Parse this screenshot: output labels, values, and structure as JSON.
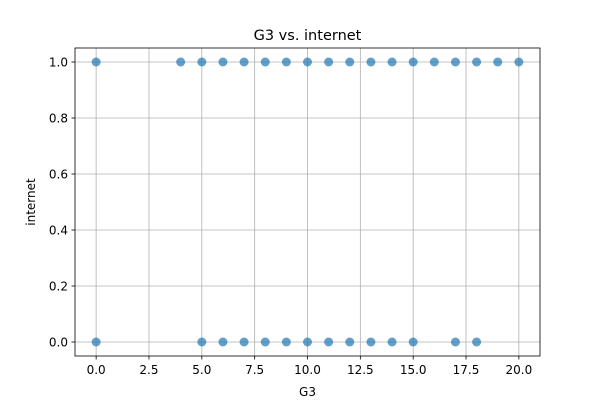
{
  "chart_data": {
    "type": "scatter",
    "title": "G3 vs. internet",
    "xlabel": "G3",
    "ylabel": "internet",
    "xlim": [
      -1.0,
      21.0
    ],
    "ylim": [
      -0.05,
      1.05
    ],
    "xticks": [
      0.0,
      2.5,
      5.0,
      7.5,
      10.0,
      12.5,
      15.0,
      17.5,
      20.0
    ],
    "xtick_labels": [
      "0.0",
      "2.5",
      "5.0",
      "7.5",
      "10.0",
      "12.5",
      "15.0",
      "17.5",
      "20.0"
    ],
    "yticks": [
      0.0,
      0.2,
      0.4,
      0.6,
      0.8,
      1.0
    ],
    "ytick_labels": [
      "0.0",
      "0.2",
      "0.4",
      "0.6",
      "0.8",
      "1.0"
    ],
    "grid": true,
    "marker_color": "#1f77b4",
    "marker_alpha": 0.7,
    "points": [
      {
        "x": 0,
        "y": 1
      },
      {
        "x": 4,
        "y": 1
      },
      {
        "x": 5,
        "y": 1
      },
      {
        "x": 6,
        "y": 1
      },
      {
        "x": 7,
        "y": 1
      },
      {
        "x": 8,
        "y": 1
      },
      {
        "x": 9,
        "y": 1
      },
      {
        "x": 10,
        "y": 1
      },
      {
        "x": 11,
        "y": 1
      },
      {
        "x": 12,
        "y": 1
      },
      {
        "x": 13,
        "y": 1
      },
      {
        "x": 14,
        "y": 1
      },
      {
        "x": 15,
        "y": 1
      },
      {
        "x": 16,
        "y": 1
      },
      {
        "x": 17,
        "y": 1
      },
      {
        "x": 18,
        "y": 1
      },
      {
        "x": 19,
        "y": 1
      },
      {
        "x": 20,
        "y": 1
      },
      {
        "x": 0,
        "y": 0
      },
      {
        "x": 5,
        "y": 0
      },
      {
        "x": 6,
        "y": 0
      },
      {
        "x": 7,
        "y": 0
      },
      {
        "x": 8,
        "y": 0
      },
      {
        "x": 9,
        "y": 0
      },
      {
        "x": 10,
        "y": 0
      },
      {
        "x": 11,
        "y": 0
      },
      {
        "x": 12,
        "y": 0
      },
      {
        "x": 13,
        "y": 0
      },
      {
        "x": 14,
        "y": 0
      },
      {
        "x": 15,
        "y": 0
      },
      {
        "x": 17,
        "y": 0
      },
      {
        "x": 18,
        "y": 0
      }
    ]
  }
}
